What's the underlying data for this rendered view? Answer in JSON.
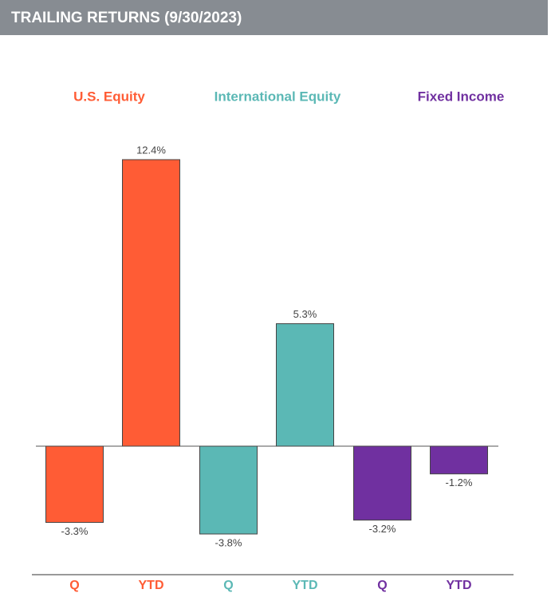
{
  "chart_data": {
    "type": "bar",
    "title": "TRAILING RETURNS (9/30/2023)",
    "series": [
      {
        "name": "U.S. Equity",
        "color": "#ff5c35",
        "categories": [
          "Q",
          "YTD"
        ],
        "values": [
          -3.3,
          12.4
        ],
        "value_labels": [
          "-3.3%",
          "12.4%"
        ]
      },
      {
        "name": "International Equity",
        "color": "#5bb8b5",
        "categories": [
          "Q",
          "YTD"
        ],
        "values": [
          -3.8,
          5.3
        ],
        "value_labels": [
          "-3.8%",
          "5.3%"
        ]
      },
      {
        "name": "Fixed Income",
        "color": "#7030a0",
        "categories": [
          "Q",
          "YTD"
        ],
        "values": [
          -3.2,
          -1.2
        ],
        "value_labels": [
          "-3.2%",
          "-1.2%"
        ]
      }
    ]
  }
}
